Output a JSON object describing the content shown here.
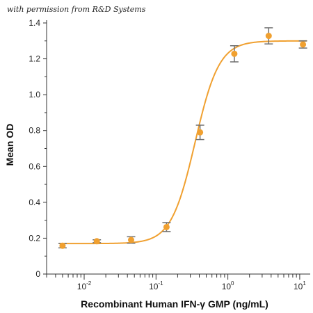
{
  "watermark": "with permission from R&D Systems",
  "chart_data": {
    "type": "scatter",
    "xlabel": "Recombinant Human IFN-γ GMP (ng/mL)",
    "ylabel": "Mean OD",
    "x_scale": "log",
    "xlim": [
      0.003,
      14
    ],
    "ylim": [
      0,
      1.4
    ],
    "yticks": [
      0,
      0.2,
      0.4,
      0.6,
      0.8,
      1.0,
      1.2,
      1.4
    ],
    "ytick_labels": [
      "0",
      "0.2",
      "0.4",
      "0.6",
      "0.8",
      "1.0",
      "1.2",
      "1.4"
    ],
    "xticks": [
      0.01,
      0.1,
      1,
      10
    ],
    "xtick_labels": [
      {
        "base": "10",
        "exp": "-2"
      },
      {
        "base": "10",
        "exp": "-1"
      },
      {
        "base": "10",
        "exp": "0"
      },
      {
        "base": "10",
        "exp": "1"
      }
    ],
    "points": [
      {
        "x": 0.005,
        "y": 0.158,
        "err": 0.012
      },
      {
        "x": 0.015,
        "y": 0.183,
        "err": 0.008
      },
      {
        "x": 0.045,
        "y": 0.19,
        "err": 0.018
      },
      {
        "x": 0.14,
        "y": 0.262,
        "err": 0.025
      },
      {
        "x": 0.41,
        "y": 0.79,
        "err": 0.04
      },
      {
        "x": 1.23,
        "y": 1.228,
        "err": 0.045
      },
      {
        "x": 3.7,
        "y": 1.328,
        "err": 0.045
      },
      {
        "x": 11.1,
        "y": 1.28,
        "err": 0.02
      }
    ],
    "fit_curve": {
      "bottom": 0.17,
      "top": 1.3,
      "ec50": 0.35,
      "hill": 2.6
    },
    "colors": {
      "series": "#F0A030",
      "error_bars": "#6e6e6e",
      "axes": "#333333"
    }
  }
}
